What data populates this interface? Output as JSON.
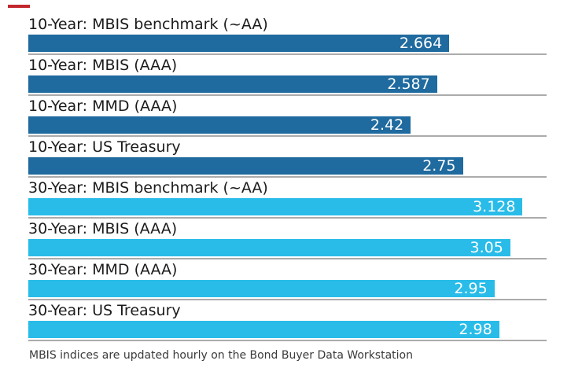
{
  "brand": {
    "dash_color": "#c2272d"
  },
  "colors": {
    "background": "#ffffff",
    "ten_year_bar": "#1f6a9e",
    "thirty_year_bar": "#29bce9",
    "row_rule": "#ababab",
    "category_text": "#1b1b1b",
    "value_text": "#ffffff",
    "footnote_text": "#3a3a3a"
  },
  "footnote": {
    "text": "MBIS indices are updated hourly on the Bond Buyer Data Workstation"
  },
  "chart_data": {
    "type": "bar",
    "orientation": "horizontal",
    "title": "",
    "xlabel": "",
    "ylabel": "",
    "xlim": [
      0,
      3.28
    ],
    "grid": false,
    "legend_position": "none",
    "value_label_position": "inside-end",
    "categories": [
      "10-Year: MBIS benchmark (~AA)",
      "10-Year: MBIS (AAA)",
      "10-Year: MMD (AAA)",
      "10-Year: US Treasury",
      "30-Year: MBIS benchmark (~AA)",
      "30-Year: MBIS (AAA)",
      "30-Year: MMD (AAA)",
      "30-Year: US Treasury"
    ],
    "values": [
      2.664,
      2.587,
      2.42,
      2.75,
      3.128,
      3.05,
      2.95,
      2.98
    ],
    "value_labels": [
      "2.664",
      "2.587",
      "2.42",
      "2.75",
      "3.128",
      "3.05",
      "2.95",
      "2.98"
    ],
    "groups": [
      "10-year",
      "10-year",
      "10-year",
      "10-year",
      "30-year",
      "30-year",
      "30-year",
      "30-year"
    ],
    "footnote": "MBIS indices are updated hourly on the Bond Buyer Data Workstation"
  }
}
